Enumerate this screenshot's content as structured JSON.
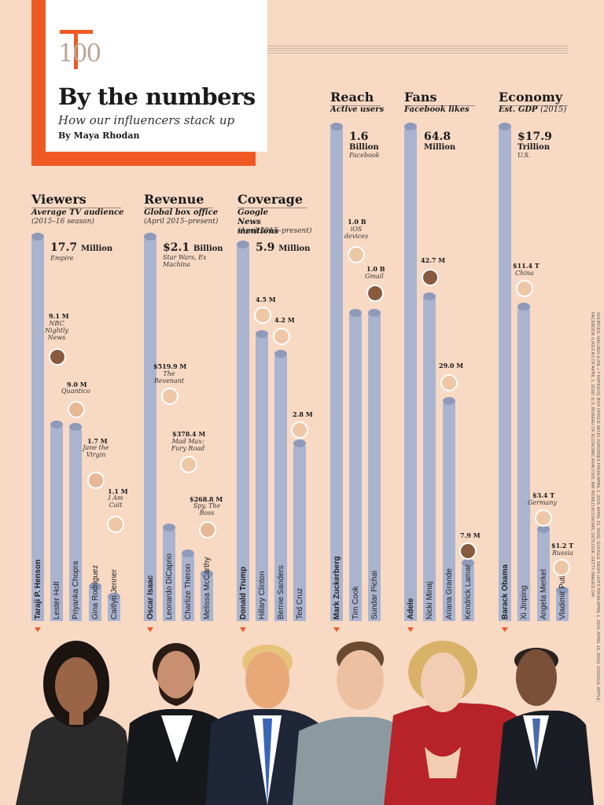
{
  "header": {
    "logo_number": "100",
    "title": "By the numbers",
    "subtitle": "How our influencers stack up",
    "byline": "By Maya Rhodan"
  },
  "sections": {
    "viewers": {
      "title": "Viewers",
      "subtitle": "Average TV audience",
      "range": "(2015–16 season)"
    },
    "revenue": {
      "title": "Revenue",
      "subtitle": "Global box office",
      "range": "(April 2015–present)"
    },
    "coverage": {
      "title": "Coverage",
      "subtitle": "Google News mentions",
      "range": "(April 2015–present)"
    },
    "reach": {
      "title": "Reach",
      "subtitle": "Active users",
      "range": ""
    },
    "fans": {
      "title": "Fans",
      "subtitle": "Facebook likes",
      "range": ""
    },
    "economy": {
      "title": "Economy",
      "subtitle": "Est. GDP",
      "range": "(2015)"
    }
  },
  "labels": {
    "henson_value": "17.7",
    "henson_unit": "Million",
    "henson_note": "Empire",
    "holt_value": "9.1 M",
    "holt_note": "NBC Nightly News",
    "chopra_value": "9.0 M",
    "chopra_note": "Quantico",
    "rodriguez_value": "1.7 M",
    "rodriguez_note": "Jane the Virgin",
    "jenner_value": "1.1 M",
    "jenner_note": "I Am Cait",
    "isaac_value": "$2.1",
    "isaac_unit": "Billion",
    "isaac_note": "Star Wars, Ex Machina",
    "dicaprio_value": "$519.9 M",
    "dicaprio_note": "The Revenant",
    "theron_value": "$378.4 M",
    "theron_note": "Mad Max: Fury Road",
    "mccarthy_value": "$268.8 M",
    "mccarthy_note": "Spy, The Boss",
    "trump_value": "5.9",
    "trump_unit": "Million",
    "clinton_value": "4.5 M",
    "sanders_value": "4.2 M",
    "cruz_value": "2.8 M",
    "zuckerberg_value": "1.6",
    "zuckerberg_unit": "Billion",
    "zuckerberg_note": "Facebook",
    "cook_value": "1.0 B",
    "cook_note": "iOS devices",
    "pichai_value": "1.0 B",
    "pichai_note": "Gmail",
    "adele_value": "64.8",
    "adele_unit": "Million",
    "minaj_value": "42.7 M",
    "grande_value": "29.0 M",
    "lamar_value": "7.9 M",
    "obama_value": "$17.9",
    "obama_unit": "Trillion",
    "obama_note": "U.S.",
    "xi_value": "$11.4 T",
    "xi_note": "China",
    "merkel_value": "$3.4 T",
    "merkel_note": "Germany",
    "putin_value": "$1.2 T",
    "putin_note": "Russia"
  },
  "sources_text": "SOURCES: NIELSEN (LIVE + 7 RATINGS); BOX OFFICE MOJO (GROSSES FROM APRIL 1, 2015–APRIL 15, 2016); GOOGLE NEWS (HITS FROM APRIL 1, 2015–APRIL 15, 2016); GOOGLE; APPLE; FACEBOOK (LIKES AS OF APRIL 1, 2016); U.S. BUREAU OF ECONOMIC ANALYSIS; IMF WORLD ECONOMIC OUTLOOK; GETTY IMAGES (24)",
  "colors": {
    "background": "#f8d9c4",
    "accent": "#ef5a24",
    "bar": "#aab4cf",
    "bar_top": "#8e9abb"
  },
  "chart_data": [
    {
      "type": "bar",
      "title": "Viewers",
      "ylabel": "Average TV audience",
      "categories": [
        "Taraji P. Henson",
        "Lester Holt",
        "Priyanka Chopra",
        "Gina Rodriguez",
        "Caitlyn Jenner"
      ],
      "values": [
        17.7,
        9.1,
        9.0,
        1.7,
        1.1
      ],
      "unit": "Million"
    },
    {
      "type": "bar",
      "title": "Revenue",
      "ylabel": "Global box office",
      "categories": [
        "Oscar Isaac",
        "Leonardo DiCaprio",
        "Charlize Theron",
        "Melissa McCarthy"
      ],
      "values": [
        2100,
        519.9,
        378.4,
        268.8
      ],
      "unit": "$ Million"
    },
    {
      "type": "bar",
      "title": "Coverage",
      "ylabel": "Google News mentions",
      "categories": [
        "Donald Trump",
        "Hillary Clinton",
        "Bernie Sanders",
        "Ted Cruz"
      ],
      "values": [
        5.9,
        4.5,
        4.2,
        2.8
      ],
      "unit": "Million"
    },
    {
      "type": "bar",
      "title": "Reach",
      "ylabel": "Active users",
      "categories": [
        "Mark Zuckerberg",
        "Tim Cook",
        "Sundar Pichai"
      ],
      "values": [
        1.6,
        1.0,
        1.0
      ],
      "unit": "Billion"
    },
    {
      "type": "bar",
      "title": "Fans",
      "ylabel": "Facebook likes",
      "categories": [
        "Adele",
        "Nicki Minaj",
        "Ariana Grande",
        "Kendrick Lamar"
      ],
      "values": [
        64.8,
        42.7,
        29.0,
        7.9
      ],
      "unit": "Million"
    },
    {
      "type": "bar",
      "title": "Economy",
      "ylabel": "Est. GDP",
      "categories": [
        "Barack Obama",
        "Xi Jinping",
        "Angela Merkel",
        "Vladimir Putin"
      ],
      "values": [
        17.9,
        11.4,
        3.4,
        1.2
      ],
      "unit": "$ Trillion"
    }
  ]
}
